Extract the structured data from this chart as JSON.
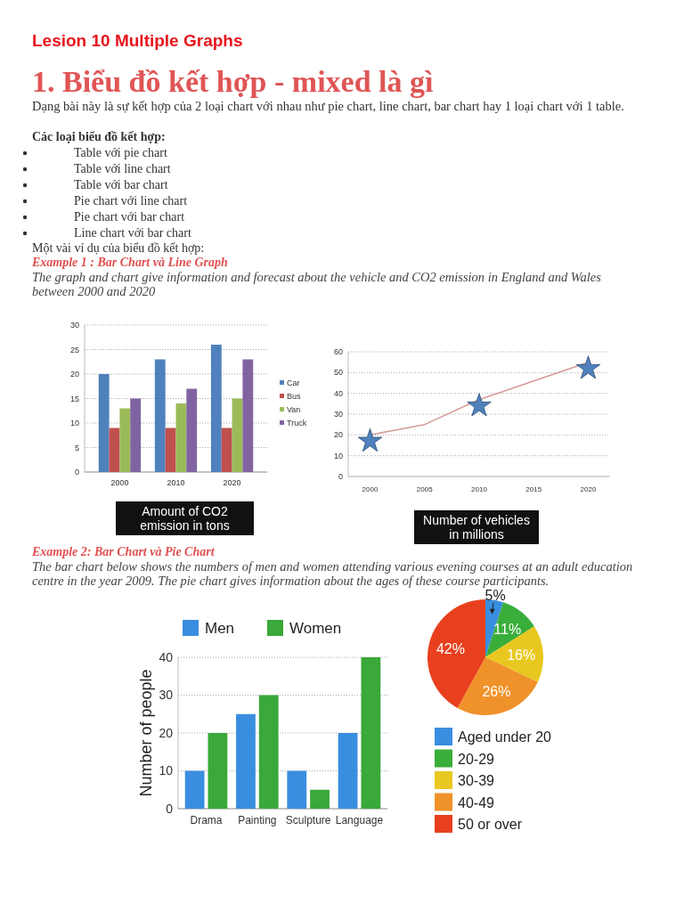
{
  "chart_data": [
    {
      "type": "bar",
      "annotations": [
        "Lesion 10 Multiple Graphs",
        "1. Biểu đồ kết hợp - mixed là gì",
        "Dạng bài này là sự kết hợp của 2 loại chart với nhau như pie chart, line chart, bar chart hay 1 loại chart với 1 table.",
        "Các loại biểu đồ kết hợp:",
        "Table với pie chart",
        "Table với line chart",
        "Table với bar chart",
        "Pie chart với line chart",
        "Pie chart với bar chart",
        "Line chart với bar chart",
        "Một vài ví dụ của biểu đồ kết hợp:",
        "Example 1 : Bar Chart và Line Graph",
        "The graph and chart give information and forecast about the vehicle and CO2 emission in England and Wales between 2000 and 2020"
      ],
      "xlabel": "Amount of CO2 emission in tons",
      "categories": [
        "2000",
        "2010",
        "2020"
      ],
      "series": [
        {
          "name": "Car",
          "color": "#4f81bd",
          "values": [
            20,
            23,
            26
          ]
        },
        {
          "name": "Bus",
          "color": "#c0504d",
          "values": [
            9,
            9,
            9
          ]
        },
        {
          "name": "Van",
          "color": "#9bbb59",
          "values": [
            13,
            14,
            15
          ]
        },
        {
          "name": "Truck",
          "color": "#8064a2",
          "values": [
            15,
            17,
            23
          ]
        }
      ],
      "ylim": [
        0,
        30
      ],
      "yticks": [
        0,
        5,
        10,
        15,
        20,
        25,
        30
      ],
      "grid": "y",
      "legend": "right"
    },
    {
      "type": "line",
      "xlabel": "Number of vehicles in millions",
      "xlim": [
        1998,
        2022
      ],
      "xticks": [
        2000,
        2005,
        2010,
        2015,
        2020
      ],
      "ylim": [
        0,
        60
      ],
      "yticks": [
        0,
        10,
        20,
        30,
        40,
        50,
        60
      ],
      "grid": "y",
      "series": [
        {
          "type": "line",
          "color": "#d49a96",
          "marker": "none",
          "x": [
            2000,
            2005,
            2010,
            2015,
            2020
          ],
          "values": [
            20,
            25,
            37,
            46,
            55
          ]
        },
        {
          "type": "scatter",
          "color": "#4f81bd",
          "marker": "star",
          "x": [
            2000,
            2010,
            2020
          ],
          "values": [
            17,
            34,
            52
          ]
        }
      ]
    },
    {
      "type": "bar",
      "annotations": [
        "Example 2: Bar Chart và Pie Chart",
        "The bar chart below shows the numbers of men and women attending various evening courses at an adult education centre in the year 2009. The pie chart gives information about the ages of these course participants."
      ],
      "categories": [
        "Drama",
        "Painting",
        "Sculpture",
        "Language"
      ],
      "ylabel": "Number of people",
      "series": [
        {
          "name": "Men",
          "color": "#3a8ee0",
          "values": [
            10,
            25,
            10,
            20
          ]
        },
        {
          "name": "Women",
          "color": "#3aa83a",
          "values": [
            20,
            30,
            5,
            40
          ]
        }
      ],
      "ylim": [
        0,
        40
      ],
      "yticks": [
        0,
        10,
        20,
        30,
        40
      ],
      "grid": "y",
      "legend": "top"
    },
    {
      "type": "pie",
      "categories": [
        "Aged under 20",
        "20-29",
        "30-39",
        "40-49",
        "50 or over"
      ],
      "values": [
        5,
        11,
        16,
        26,
        42
      ],
      "colors": [
        "#3a8ee0",
        "#3aae3a",
        "#e8c820",
        "#f0922a",
        "#e8401e"
      ],
      "value_labels": [
        "5%",
        "11%",
        "16%",
        "26%",
        "42%"
      ],
      "legend": "bottom"
    }
  ]
}
